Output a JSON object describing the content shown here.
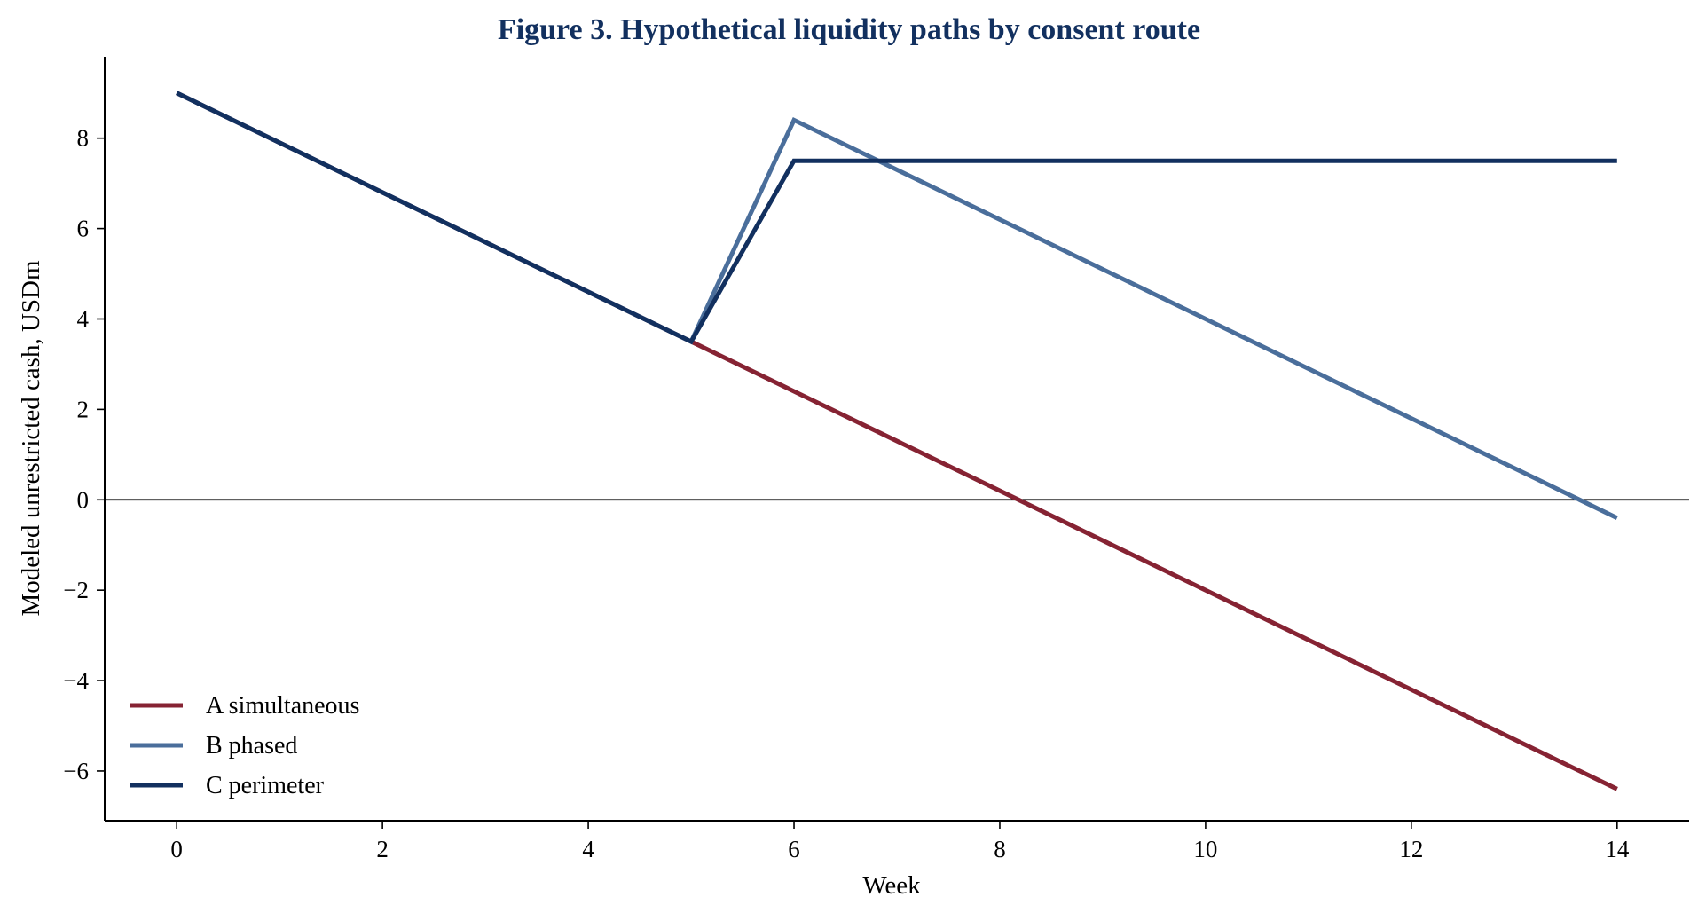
{
  "chart_data": {
    "type": "line",
    "title": "Figure 3. Hypothetical liquidity paths by consent route",
    "xlabel": "Week",
    "ylabel": "Modeled unrestricted cash, USDm",
    "xlim": [
      -0.7,
      14.7
    ],
    "ylim": [
      -7.1,
      9.8
    ],
    "x_ticks": [
      0,
      2,
      4,
      6,
      8,
      10,
      12,
      14
    ],
    "y_ticks": [
      -6,
      -4,
      -2,
      0,
      2,
      4,
      6,
      8
    ],
    "x_tick_labels": [
      "0",
      "2",
      "4",
      "6",
      "8",
      "10",
      "12",
      "14"
    ],
    "y_tick_labels": [
      "−6",
      "−4",
      "−2",
      "0",
      "2",
      "4",
      "6",
      "8"
    ],
    "reference_line": {
      "y": 0,
      "color": "#000000"
    },
    "grid": false,
    "legend_position": "lower-left",
    "title_color": "#12305f",
    "series": [
      {
        "name": "A simultaneous",
        "color": "#862333",
        "points": [
          [
            0,
            9.0
          ],
          [
            5,
            3.5
          ],
          [
            14,
            -6.4
          ]
        ]
      },
      {
        "name": "B phased",
        "color": "#4a6e9b",
        "points": [
          [
            0,
            9.0
          ],
          [
            5,
            3.5
          ],
          [
            6,
            8.4
          ],
          [
            14,
            -0.4
          ]
        ]
      },
      {
        "name": "C perimeter",
        "color": "#12305f",
        "points": [
          [
            0,
            9.0
          ],
          [
            5,
            3.5
          ],
          [
            6,
            7.5
          ],
          [
            14,
            7.5
          ]
        ]
      }
    ]
  }
}
